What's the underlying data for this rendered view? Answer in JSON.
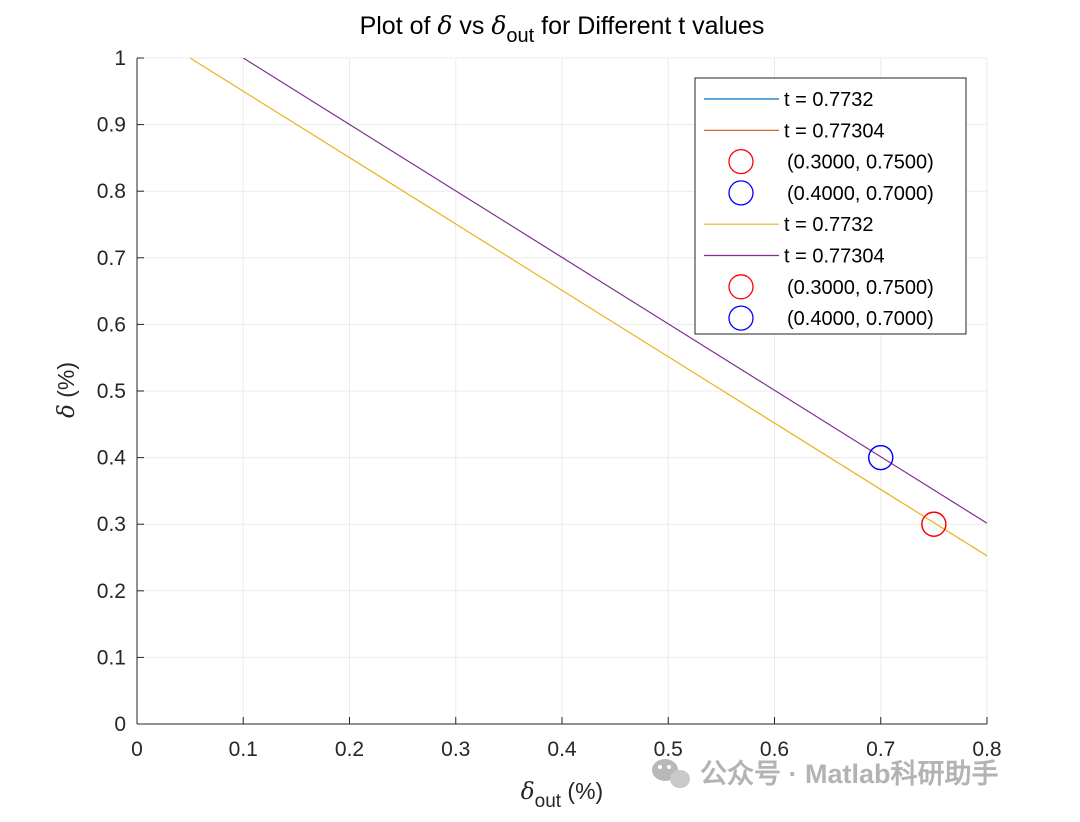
{
  "chart_data": {
    "type": "line",
    "title": {
      "prefix": "Plot of ",
      "delta": "δ",
      "mid": " vs ",
      "delta_out": "δ",
      "sub": "out",
      "suffix": " for Different t values"
    },
    "xlabel": {
      "symbol": "δ",
      "sub": "out",
      "unit": " (%)"
    },
    "ylabel": {
      "symbol": "δ",
      "unit": " (%)"
    },
    "xlim": [
      0,
      0.8
    ],
    "ylim": [
      0,
      1
    ],
    "xticks": [
      0,
      0.1,
      0.2,
      0.3,
      0.4,
      0.5,
      0.6,
      0.7,
      0.8
    ],
    "yticks": [
      0,
      0.1,
      0.2,
      0.3,
      0.4,
      0.5,
      0.6,
      0.7,
      0.8,
      0.9,
      1
    ],
    "xtick_labels": [
      "0",
      "0.1",
      "0.2",
      "0.3",
      "0.4",
      "0.5",
      "0.6",
      "0.7",
      "0.8"
    ],
    "ytick_labels": [
      "0",
      "0.1",
      "0.2",
      "0.3",
      "0.4",
      "0.5",
      "0.6",
      "0.7",
      "0.8",
      "0.9",
      "1"
    ],
    "grid": true,
    "legend_position": "top-right",
    "series": [
      {
        "name": "t = 0.7732",
        "kind": "line",
        "color": "#0072BD",
        "x": [
          0.05,
          0.8
        ],
        "y": [
          1.0,
          0.2525
        ],
        "visible_in_plot": false
      },
      {
        "name": "t = 0.77304",
        "kind": "line",
        "color": "#D95319",
        "x": [
          0.1,
          0.8
        ],
        "y": [
          1.0,
          0.3015
        ],
        "visible_in_plot": false
      },
      {
        "name": "(0.3000, 0.7500)",
        "kind": "marker",
        "color": "#FF0000",
        "x": [
          0.75
        ],
        "y": [
          0.3
        ]
      },
      {
        "name": "(0.4000, 0.7000)",
        "kind": "marker",
        "color": "#0000FF",
        "x": [
          0.7
        ],
        "y": [
          0.4
        ]
      },
      {
        "name": "t = 0.7732",
        "kind": "line",
        "color": "#EDB120",
        "x": [
          0.05,
          0.8
        ],
        "y": [
          1.0,
          0.2525
        ]
      },
      {
        "name": "t = 0.77304",
        "kind": "line",
        "color": "#7E2F8E",
        "x": [
          0.1,
          0.8
        ],
        "y": [
          1.0,
          0.3015
        ]
      },
      {
        "name": "(0.3000, 0.7500)",
        "kind": "marker",
        "color": "#FF0000",
        "x": [
          0.75
        ],
        "y": [
          0.3
        ]
      },
      {
        "name": "(0.4000, 0.7000)",
        "kind": "marker",
        "color": "#0000FF",
        "x": [
          0.7
        ],
        "y": [
          0.4
        ]
      }
    ]
  },
  "watermark": {
    "text": "公众号 · Matlab科研助手",
    "icon": "wechat-icon"
  },
  "colors": {
    "axis": "#262626",
    "grid": "#ebebeb",
    "background": "#ffffff"
  }
}
